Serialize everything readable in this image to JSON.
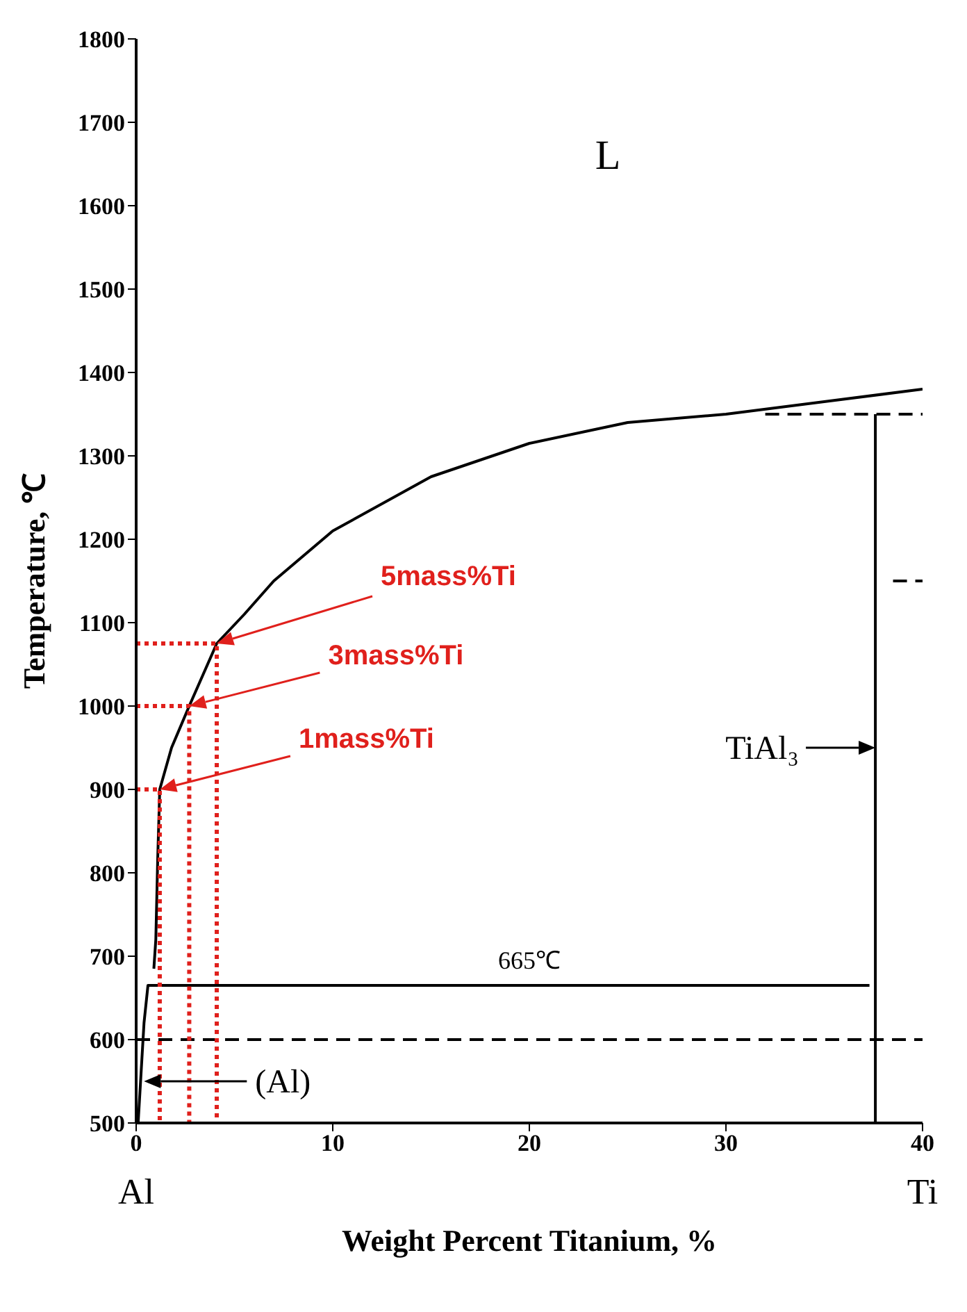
{
  "chart_data": {
    "type": "line",
    "xlabel": "Weight Percent Titanium, %",
    "ylabel": "Temperature, ℃",
    "xlim": [
      0,
      40
    ],
    "ylim": [
      500,
      1800
    ],
    "xticks": [
      0,
      10,
      20,
      30,
      40
    ],
    "yticks": [
      500,
      600,
      700,
      800,
      900,
      1000,
      1100,
      1200,
      1300,
      1400,
      1500,
      1600,
      1700,
      1800
    ],
    "grid": false,
    "marker": "none",
    "series": [
      {
        "x": [
          0.9,
          1.0,
          1.1,
          1.2,
          1.8,
          2.7,
          4.1,
          5.5,
          7,
          10,
          15,
          20,
          25,
          30,
          35,
          40
        ],
        "values": [
          685,
          720,
          820,
          900,
          950,
          1000,
          1075,
          1110,
          1150,
          1210,
          1275,
          1315,
          1340,
          1350,
          1365,
          1380
        ],
        "color": "#000000",
        "line_style": "solid"
      },
      {
        "x": [
          0.1,
          0.4,
          0.6,
          37.3
        ],
        "values": [
          500,
          620,
          665,
          665
        ],
        "color": "#000000",
        "line_style": "solid"
      },
      {
        "x": [
          37.6,
          37.6
        ],
        "values": [
          500,
          1350
        ],
        "color": "#000000",
        "line_style": "solid"
      },
      {
        "x": [
          32,
          40
        ],
        "values": [
          1350,
          1350
        ],
        "color": "#000000",
        "line_style": "dashed"
      },
      {
        "x": [
          38.5,
          40
        ],
        "values": [
          1150,
          1150
        ],
        "color": "#000000",
        "line_style": "dashed"
      },
      {
        "x": [
          0,
          40
        ],
        "values": [
          600,
          600
        ],
        "color": "#000000",
        "line_style": "dashed"
      },
      {
        "x": [
          0,
          1.2,
          1.2
        ],
        "values": [
          900,
          900,
          500
        ],
        "color": "#e0201c",
        "line_style": "dotted"
      },
      {
        "x": [
          0,
          2.7,
          2.7
        ],
        "values": [
          1000,
          1000,
          500
        ],
        "color": "#e0201c",
        "line_style": "dotted"
      },
      {
        "x": [
          0,
          4.1,
          4.1
        ],
        "values": [
          1075,
          1075,
          500
        ],
        "color": "#e0201c",
        "line_style": "dotted"
      }
    ],
    "annotations": [
      "L",
      {
        "text": "665℃",
        "x": 20,
        "y": 665
      },
      "5mass%Ti",
      "3mass%Ti",
      "1mass%Ti",
      {
        "text": "TiAl₃",
        "x": 37.6,
        "y": 950
      },
      "(Al)",
      "Al",
      "Ti"
    ]
  }
}
